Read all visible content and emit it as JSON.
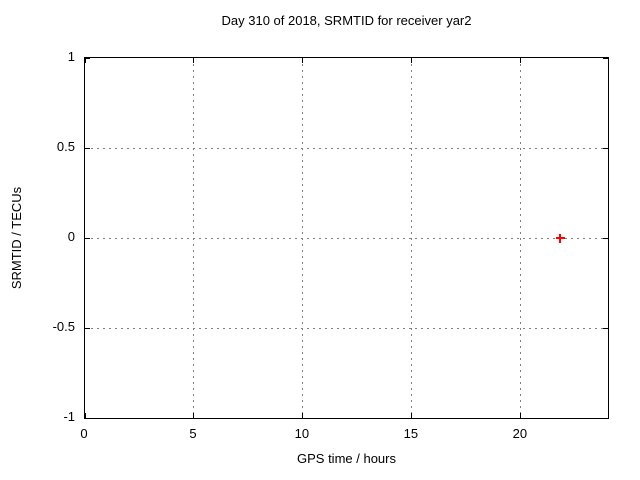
{
  "page": {
    "background": "#ffffff"
  },
  "chart_data": {
    "type": "scatter",
    "title": "Day 310 of 2018, SRMTID for receiver yar2",
    "xlabel": "GPS time / hours",
    "ylabel": "SRMTID / TECUs",
    "xlim": [
      0,
      24
    ],
    "ylim": [
      -1,
      1
    ],
    "xticks": [
      0,
      5,
      10,
      15,
      20
    ],
    "yticks": [
      -1,
      -0.5,
      0,
      0.5,
      1
    ],
    "grid": true,
    "tics_mirrored": true,
    "legend_position": "none",
    "grid_color": "#808080",
    "axis_color": "#000000",
    "text_color": "#000000",
    "series": [
      {
        "name": "SRMTID",
        "marker": "plus",
        "color": "#ff0000",
        "points": [
          {
            "x": 21.8,
            "y": 0.0
          }
        ]
      }
    ]
  }
}
